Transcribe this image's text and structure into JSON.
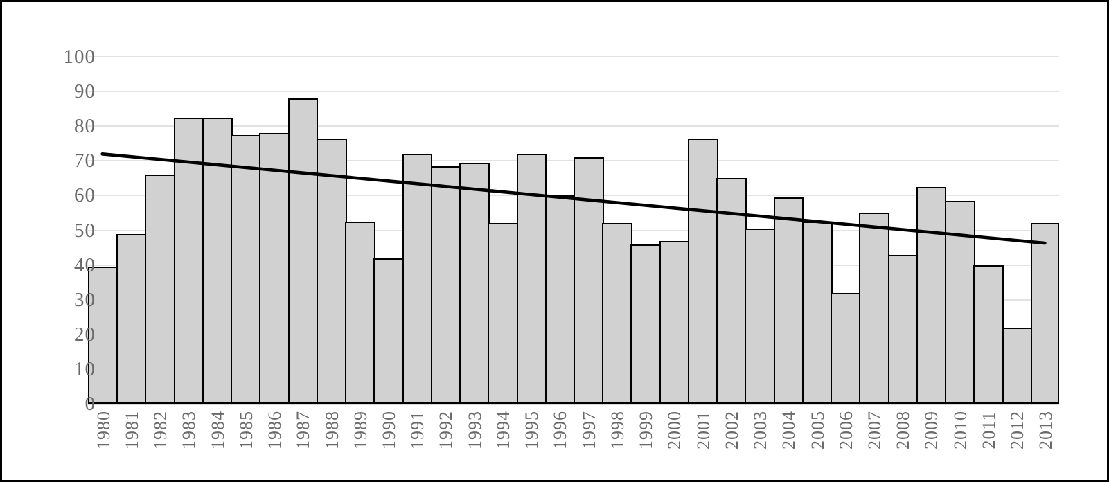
{
  "chart_data": {
    "type": "bar",
    "title": "",
    "categories": [
      "1980",
      "1981",
      "1982",
      "1983",
      "1984",
      "1985",
      "1986",
      "1987",
      "1988",
      "1989",
      "1990",
      "1991",
      "1992",
      "1993",
      "1994",
      "1995",
      "1996",
      "1997",
      "1998",
      "1999",
      "2000",
      "2001",
      "2002",
      "2003",
      "2004",
      "2005",
      "2006",
      "2007",
      "2008",
      "2009",
      "2010",
      "2011",
      "2012",
      "2013"
    ],
    "values": [
      39.5,
      49,
      66,
      82.5,
      82.5,
      77.5,
      78,
      88,
      76.5,
      52.5,
      42,
      72,
      68.5,
      69.5,
      52,
      72,
      60,
      71,
      52,
      46,
      47,
      76.5,
      65,
      50.5,
      59.5,
      52.5,
      32,
      55,
      43,
      62.5,
      58.5,
      40,
      22,
      52
    ],
    "trendline": {
      "type": "linear",
      "start_category": "1980",
      "end_category": "2013",
      "start_value": 72,
      "end_value": 46.3
    },
    "xlabel": "",
    "ylabel": "",
    "ylim": [
      0,
      100
    ],
    "ytick_step": 10,
    "ytick_labels": [
      "0",
      "10",
      "20",
      "30",
      "40",
      "50",
      "60",
      "70",
      "80",
      "90",
      "100"
    ],
    "grid": true,
    "legend": false,
    "colors": {
      "background": "#ffffff",
      "frame_border": "#000000",
      "bar_fill": "#d1d1d1",
      "bar_border": "#000000",
      "trendline": "#000000",
      "gridline": "#e2e2e2",
      "axis_line": "#d9d9d9",
      "tick_label": "#6a6a6a"
    }
  }
}
